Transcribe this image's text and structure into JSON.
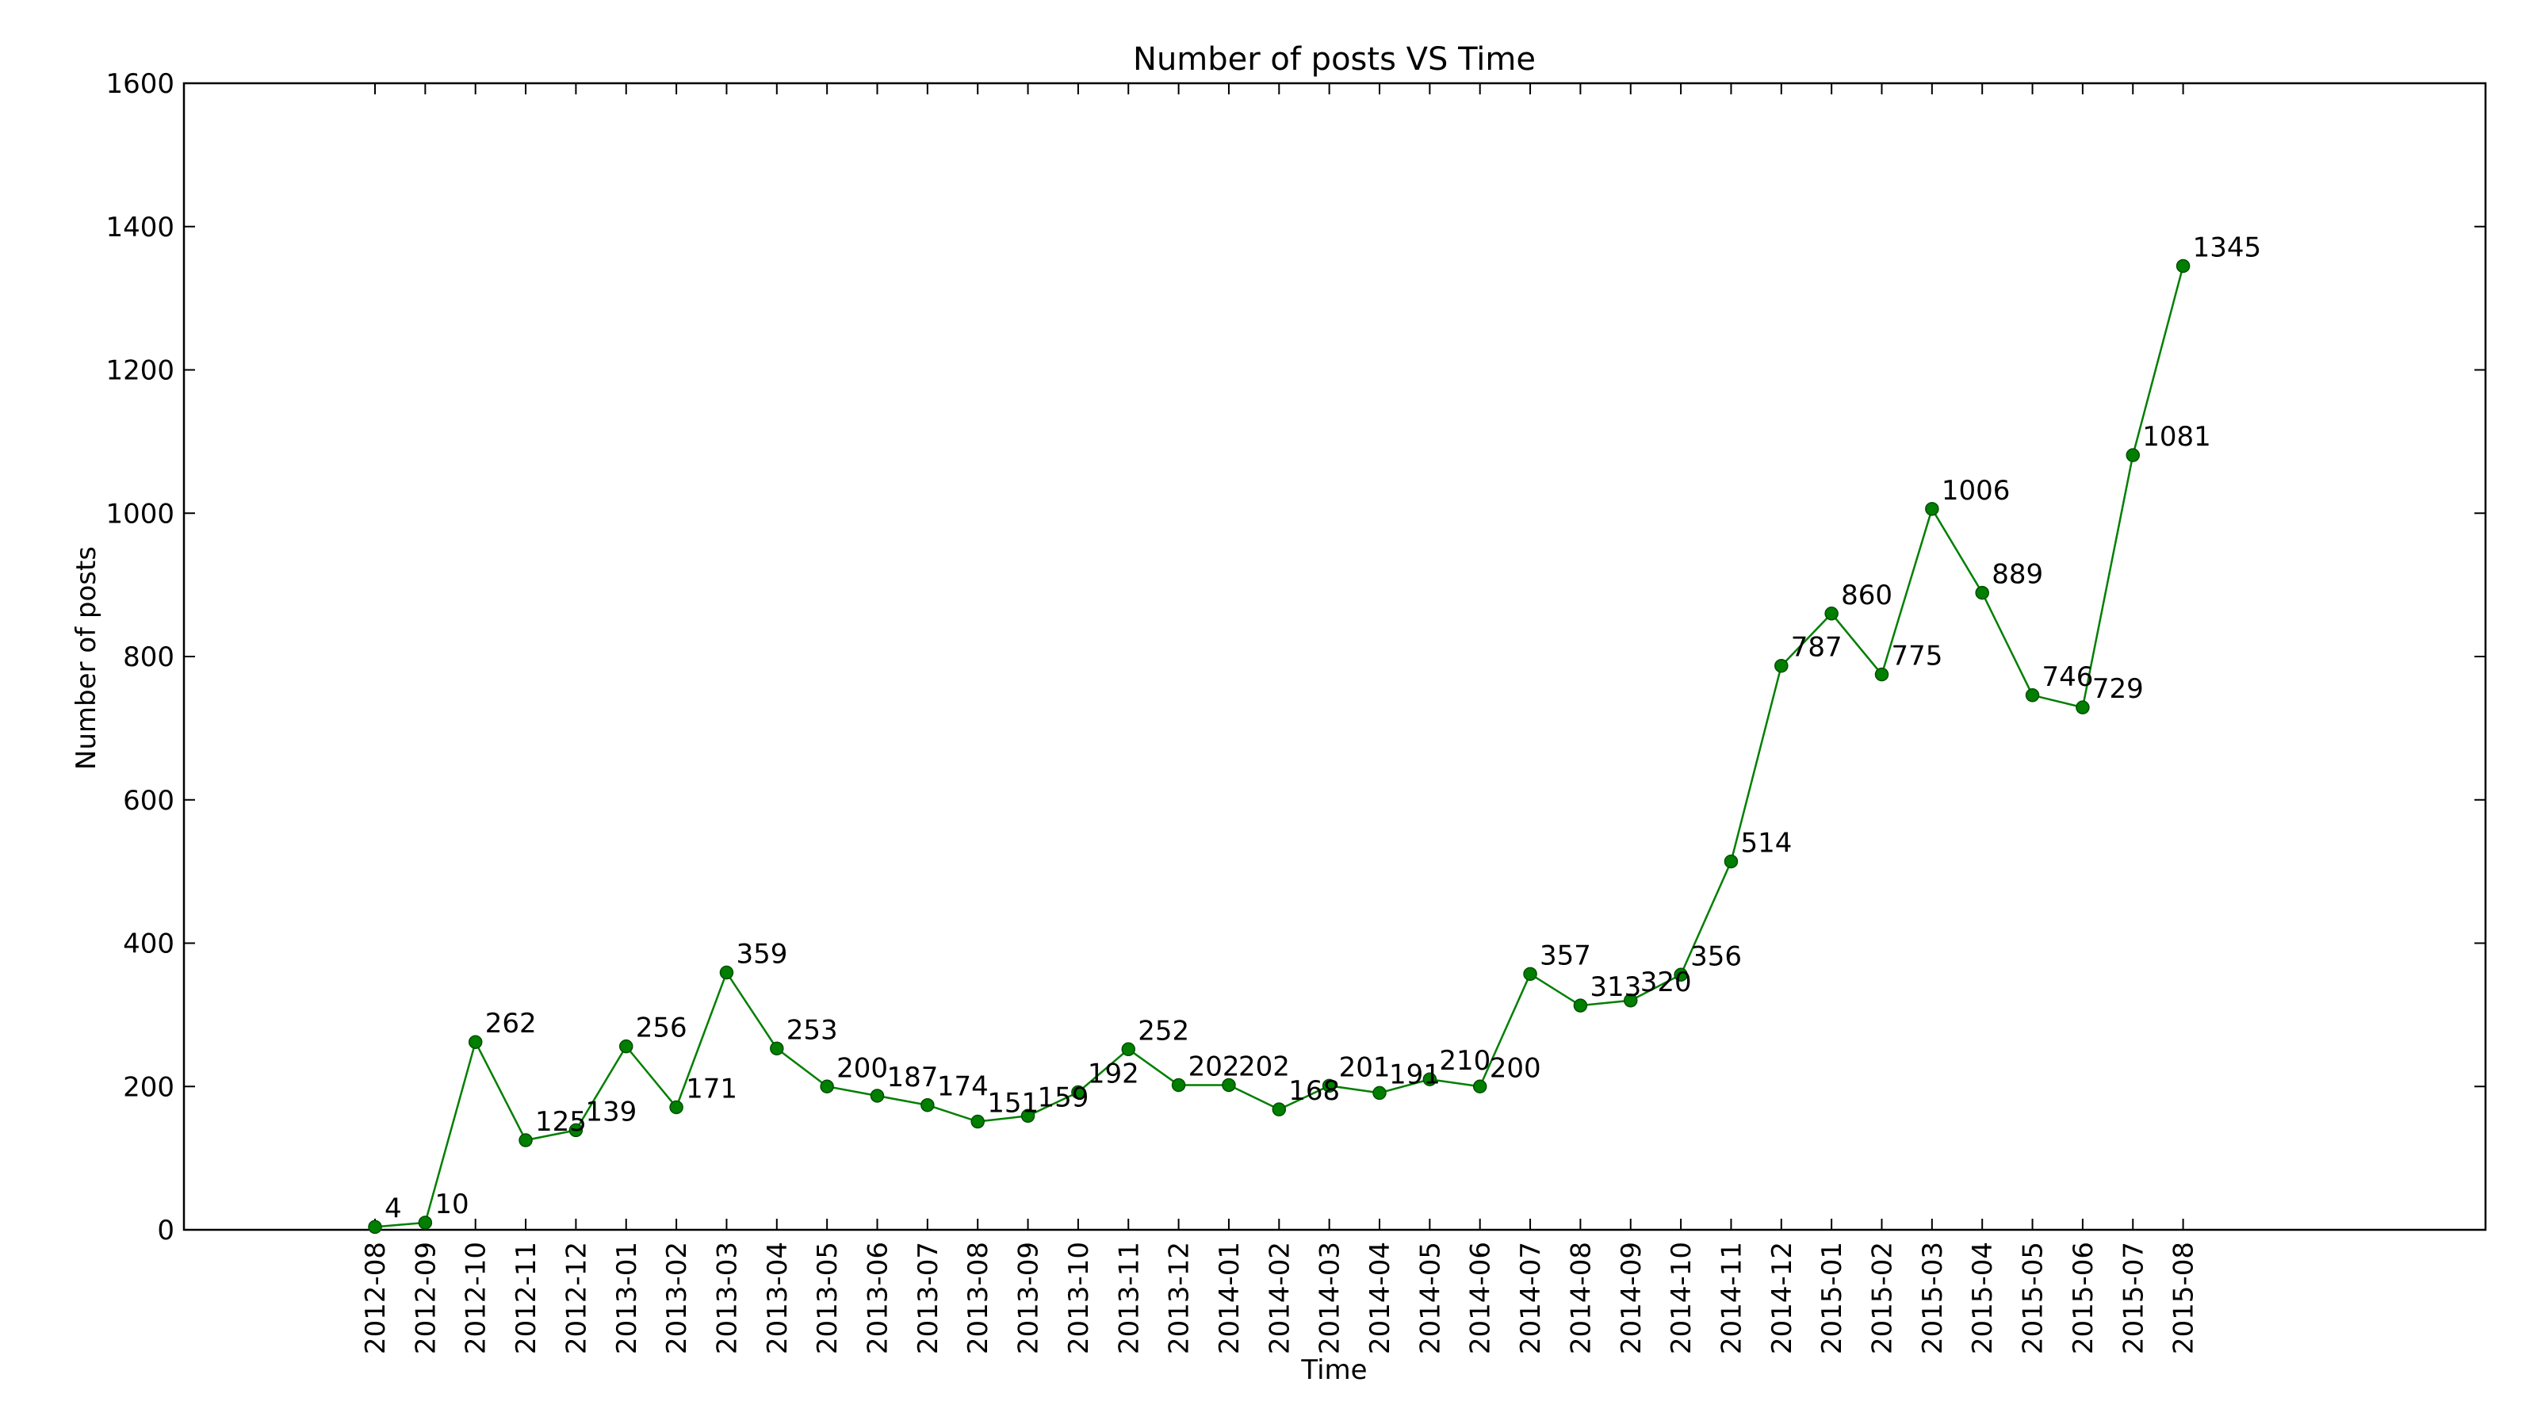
{
  "chart_data": {
    "type": "line",
    "title": "Number of posts VS Time",
    "xlabel": "Time",
    "ylabel": "Number of posts",
    "ylim": [
      0,
      1600
    ],
    "yticks": [
      0,
      200,
      400,
      600,
      800,
      1000,
      1200,
      1400,
      1600
    ],
    "grid": false,
    "categories": [
      "2012-08",
      "2012-09",
      "2012-10",
      "2012-11",
      "2012-12",
      "2013-01",
      "2013-02",
      "2013-03",
      "2013-04",
      "2013-05",
      "2013-06",
      "2013-07",
      "2013-08",
      "2013-09",
      "2013-10",
      "2013-11",
      "2013-12",
      "2014-01",
      "2014-02",
      "2014-03",
      "2014-04",
      "2014-05",
      "2014-06",
      "2014-07",
      "2014-08",
      "2014-09",
      "2014-10",
      "2014-11",
      "2014-12",
      "2015-01",
      "2015-02",
      "2015-03",
      "2015-04",
      "2015-05",
      "2015-06",
      "2015-07",
      "2015-08"
    ],
    "series": [
      {
        "values": [
          4,
          10,
          262,
          125,
          139,
          256,
          171,
          359,
          253,
          200,
          187,
          174,
          151,
          159,
          192,
          252,
          202,
          202,
          168,
          201,
          191,
          210,
          200,
          357,
          313,
          320,
          356,
          514,
          787,
          860,
          775,
          1006,
          889,
          746,
          729,
          1081,
          1345
        ],
        "color": "#007f00",
        "marker_fill": "#007f00",
        "marker_edge": "#004d00"
      }
    ],
    "data_labels": [
      "4",
      "10",
      "262",
      "125",
      "139",
      "256",
      "171",
      "359",
      "253",
      "200",
      "187",
      "174",
      "151",
      "159",
      "192",
      "252",
      "202",
      "202",
      "168",
      "201",
      "191",
      "210",
      "200",
      "357",
      "313",
      "320",
      "356",
      "514",
      "787",
      "860",
      "775",
      "1006",
      "889",
      "746",
      "729",
      "1081",
      "1345"
    ]
  }
}
